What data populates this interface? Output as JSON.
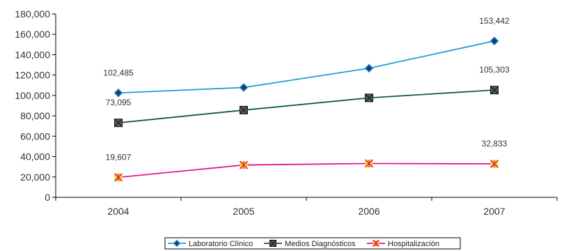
{
  "chart_data": {
    "type": "line",
    "categories": [
      "2004",
      "2005",
      "2006",
      "2007"
    ],
    "ylim": [
      0,
      180000
    ],
    "yticks": [
      0,
      20000,
      40000,
      60000,
      80000,
      100000,
      120000,
      140000,
      160000,
      180000
    ],
    "ytick_labels": [
      "0",
      "20,000",
      "40,000",
      "60,000",
      "80,000",
      "100,000",
      "120,000",
      "140,000",
      "160,000",
      "180,000"
    ],
    "grid": false,
    "legend_position": "bottom",
    "series": [
      {
        "name": "Laboratorio Clínico",
        "color": "#1e9bd7",
        "marker": "diamond",
        "marker_fill": "#1f3a73",
        "values": [
          102485,
          107800,
          126700,
          153442
        ],
        "labels": [
          "102,485",
          null,
          null,
          "153,442"
        ]
      },
      {
        "name": "Medios Diagnósticos",
        "color": "#0f5e3a",
        "marker": "square-x",
        "marker_fill": "#5a5a5a",
        "values": [
          73095,
          85600,
          97600,
          105303
        ],
        "labels": [
          "73,095",
          null,
          null,
          "105,303"
        ]
      },
      {
        "name": "Hospitalización",
        "color": "#e0188c",
        "marker": "star-x",
        "marker_fill": "#f5e600",
        "values": [
          19607,
          31700,
          33200,
          32833
        ],
        "labels": [
          "19,607",
          null,
          null,
          "32,833"
        ]
      }
    ]
  }
}
